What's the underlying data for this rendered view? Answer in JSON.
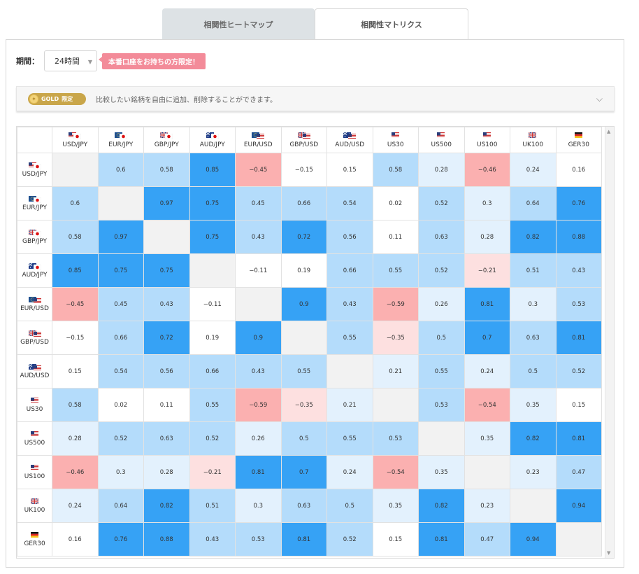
{
  "tabs": [
    {
      "label": "相関性ヒートマップ",
      "active": false
    },
    {
      "label": "相関性マトリクス",
      "active": true
    }
  ],
  "period": {
    "label": "期間：",
    "selected": "24時間"
  },
  "promo_label": "本番口座をお持ちの方限定！",
  "gold": {
    "badge": "GOLD",
    "badge_sub": "限定",
    "text": "比較したい銘柄を自由に追加、削除することができます。"
  },
  "symbols": [
    "USD/JPY",
    "EUR/JPY",
    "GBP/JPY",
    "AUD/JPY",
    "EUR/USD",
    "GBP/USD",
    "AUD/USD",
    "US30",
    "US500",
    "US100",
    "UK100",
    "GER30"
  ],
  "flags": [
    [
      "us",
      "jp"
    ],
    [
      "eu",
      "jp"
    ],
    [
      "gb",
      "jp"
    ],
    [
      "au",
      "jp"
    ],
    [
      "eu",
      "us"
    ],
    [
      "gb",
      "us"
    ],
    [
      "au",
      "us"
    ],
    [
      "us"
    ],
    [
      "us"
    ],
    [
      "us"
    ],
    [
      "gb"
    ],
    [
      "de"
    ]
  ],
  "matrix": [
    [
      null,
      0.6,
      0.58,
      0.85,
      -0.45,
      -0.15,
      0.15,
      0.58,
      0.28,
      -0.46,
      0.24,
      0.16
    ],
    [
      0.6,
      null,
      0.97,
      0.75,
      0.45,
      0.66,
      0.54,
      0.02,
      0.52,
      0.3,
      0.64,
      0.76
    ],
    [
      0.58,
      0.97,
      null,
      0.75,
      0.43,
      0.72,
      0.56,
      0.11,
      0.63,
      0.28,
      0.82,
      0.88
    ],
    [
      0.85,
      0.75,
      0.75,
      null,
      -0.11,
      0.19,
      0.66,
      0.55,
      0.52,
      -0.21,
      0.51,
      0.43
    ],
    [
      -0.45,
      0.45,
      0.43,
      -0.11,
      null,
      0.9,
      0.43,
      -0.59,
      0.26,
      0.81,
      0.3,
      0.53
    ],
    [
      -0.15,
      0.66,
      0.72,
      0.19,
      0.9,
      null,
      0.55,
      -0.35,
      0.5,
      0.7,
      0.63,
      0.81
    ],
    [
      0.15,
      0.54,
      0.56,
      0.66,
      0.43,
      0.55,
      null,
      0.21,
      0.55,
      0.24,
      0.5,
      0.52
    ],
    [
      0.58,
      0.02,
      0.11,
      0.55,
      -0.59,
      -0.35,
      0.21,
      null,
      0.53,
      -0.54,
      0.35,
      0.15
    ],
    [
      0.28,
      0.52,
      0.63,
      0.52,
      0.26,
      0.5,
      0.55,
      0.53,
      null,
      0.35,
      0.82,
      0.81
    ],
    [
      -0.46,
      0.3,
      0.28,
      -0.21,
      0.81,
      0.7,
      0.24,
      -0.54,
      0.35,
      null,
      0.23,
      0.47
    ],
    [
      0.24,
      0.64,
      0.82,
      0.51,
      0.3,
      0.63,
      0.5,
      0.35,
      0.82,
      0.23,
      null,
      0.94
    ],
    [
      0.16,
      0.76,
      0.88,
      0.43,
      0.53,
      0.81,
      0.52,
      0.15,
      0.81,
      0.47,
      0.94,
      null
    ]
  ],
  "colors": {
    "strong_pos": "#36a2f5",
    "mid_pos": "#b4dcfb",
    "weak_pos": "#e3f1fd",
    "neutral": "#ffffff",
    "weak_neg": "#fde0e0",
    "mid_neg": "#fbb0b0",
    "diagonal": "#f2f2f2"
  }
}
